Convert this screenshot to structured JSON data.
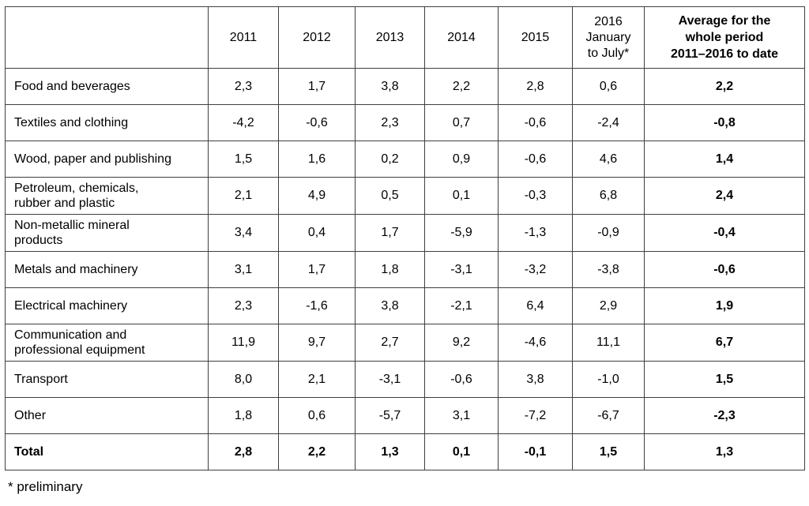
{
  "table": {
    "columns": [
      {
        "label": ""
      },
      {
        "label": "2011"
      },
      {
        "label": "2012"
      },
      {
        "label": "2013"
      },
      {
        "label": "2014"
      },
      {
        "label": "2015"
      },
      {
        "label": "2016\nJanuary\nto July*"
      },
      {
        "label": "Average for the\nwhole period\n2011–2016 to date"
      }
    ],
    "rows": [
      {
        "label": "Food and beverages",
        "values": [
          "2,3",
          "1,7",
          "3,8",
          "2,2",
          "2,8",
          "0,6",
          "2,2"
        ],
        "bold": false
      },
      {
        "label": "Textiles and clothing",
        "values": [
          "-4,2",
          "-0,6",
          "2,3",
          "0,7",
          "-0,6",
          "-2,4",
          "-0,8"
        ],
        "bold": false
      },
      {
        "label": "Wood, paper and publishing",
        "values": [
          "1,5",
          "1,6",
          "0,2",
          "0,9",
          "-0,6",
          "4,6",
          "1,4"
        ],
        "bold": false
      },
      {
        "label": "Petroleum, chemicals,\nrubber and plastic",
        "values": [
          "2,1",
          "4,9",
          "0,5",
          "0,1",
          "-0,3",
          "6,8",
          "2,4"
        ],
        "bold": false
      },
      {
        "label": "Non-metallic mineral\nproducts",
        "values": [
          "3,4",
          "0,4",
          "1,7",
          "-5,9",
          "-1,3",
          "-0,9",
          "-0,4"
        ],
        "bold": false
      },
      {
        "label": "Metals and machinery",
        "values": [
          "3,1",
          "1,7",
          "1,8",
          "-3,1",
          "-3,2",
          "-3,8",
          "-0,6"
        ],
        "bold": false
      },
      {
        "label": "Electrical machinery",
        "values": [
          "2,3",
          "-1,6",
          "3,8",
          "-2,1",
          "6,4",
          "2,9",
          "1,9"
        ],
        "bold": false
      },
      {
        "label": "Communication and\nprofessional equipment",
        "values": [
          "11,9",
          "9,7",
          "2,7",
          "9,2",
          "-4,6",
          "11,1",
          "6,7"
        ],
        "bold": false
      },
      {
        "label": "Transport",
        "values": [
          "8,0",
          "2,1",
          "-3,1",
          "-0,6",
          "3,8",
          "-1,0",
          "1,5"
        ],
        "bold": false
      },
      {
        "label": "Other",
        "values": [
          "1,8",
          "0,6",
          "-5,7",
          "3,1",
          "-7,2",
          "-6,7",
          "-2,3"
        ],
        "bold": false
      },
      {
        "label": "Total",
        "values": [
          "2,8",
          "2,2",
          "1,3",
          "0,1",
          "-0,1",
          "1,5",
          "1,3"
        ],
        "bold": true
      }
    ]
  },
  "footnote": "* preliminary",
  "colors": {
    "border": "#3f3f3f",
    "text": "#000000",
    "background": "#ffffff"
  }
}
